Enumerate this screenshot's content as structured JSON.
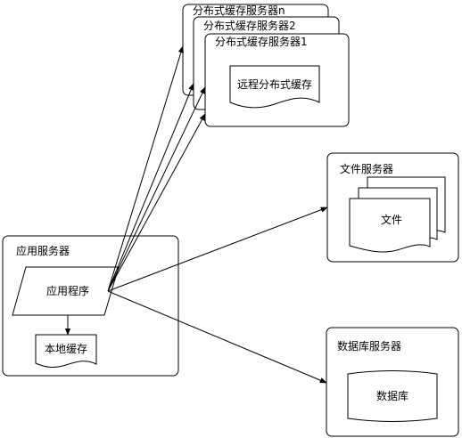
{
  "distributed_cache": {
    "server_n": "分布式缓存服务器n",
    "server_2": "分布式缓存服务器2",
    "server_1": "分布式缓存服务器1",
    "remote_cache": "远程分布式缓存"
  },
  "file_server": {
    "title": "文件服务器",
    "file": "文件"
  },
  "app_server": {
    "title": "应用服务器",
    "program": "应用程序",
    "local_cache": "本地缓存"
  },
  "db_server": {
    "title": "数据库服务器",
    "database": "数据库"
  }
}
